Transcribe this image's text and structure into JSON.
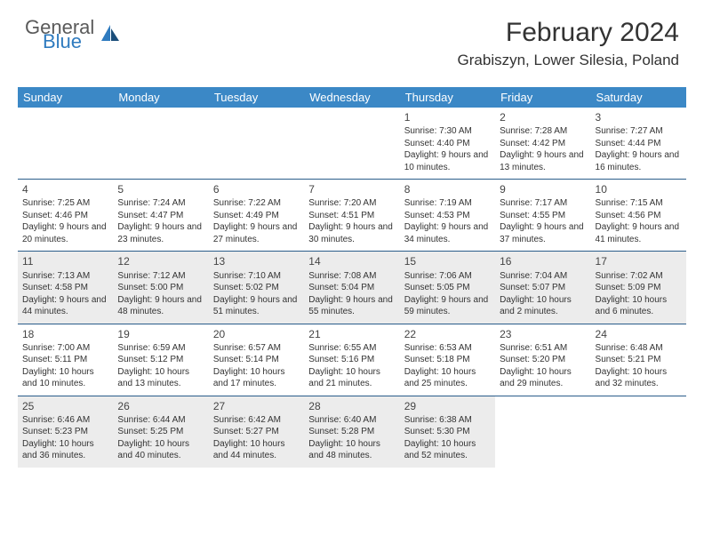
{
  "logo": {
    "word1": "General",
    "word2": "Blue"
  },
  "title": "February 2024",
  "location": "Grabiszyn, Lower Silesia, Poland",
  "colors": {
    "header_bg": "#3b88c6",
    "header_text": "#ffffff",
    "row_border": "#2a5d8a",
    "alt_bg": "#ececec",
    "logo_gray": "#5a5a5a",
    "logo_blue": "#2f7bbf"
  },
  "day_headers": [
    "Sunday",
    "Monday",
    "Tuesday",
    "Wednesday",
    "Thursday",
    "Friday",
    "Saturday"
  ],
  "weeks": [
    [
      null,
      null,
      null,
      null,
      {
        "n": "1",
        "sr": "7:30 AM",
        "ss": "4:40 PM",
        "dl": "9 hours and 10 minutes."
      },
      {
        "n": "2",
        "sr": "7:28 AM",
        "ss": "4:42 PM",
        "dl": "9 hours and 13 minutes."
      },
      {
        "n": "3",
        "sr": "7:27 AM",
        "ss": "4:44 PM",
        "dl": "9 hours and 16 minutes."
      }
    ],
    [
      {
        "n": "4",
        "sr": "7:25 AM",
        "ss": "4:46 PM",
        "dl": "9 hours and 20 minutes."
      },
      {
        "n": "5",
        "sr": "7:24 AM",
        "ss": "4:47 PM",
        "dl": "9 hours and 23 minutes."
      },
      {
        "n": "6",
        "sr": "7:22 AM",
        "ss": "4:49 PM",
        "dl": "9 hours and 27 minutes."
      },
      {
        "n": "7",
        "sr": "7:20 AM",
        "ss": "4:51 PM",
        "dl": "9 hours and 30 minutes."
      },
      {
        "n": "8",
        "sr": "7:19 AM",
        "ss": "4:53 PM",
        "dl": "9 hours and 34 minutes."
      },
      {
        "n": "9",
        "sr": "7:17 AM",
        "ss": "4:55 PM",
        "dl": "9 hours and 37 minutes."
      },
      {
        "n": "10",
        "sr": "7:15 AM",
        "ss": "4:56 PM",
        "dl": "9 hours and 41 minutes."
      }
    ],
    [
      {
        "n": "11",
        "sr": "7:13 AM",
        "ss": "4:58 PM",
        "dl": "9 hours and 44 minutes."
      },
      {
        "n": "12",
        "sr": "7:12 AM",
        "ss": "5:00 PM",
        "dl": "9 hours and 48 minutes."
      },
      {
        "n": "13",
        "sr": "7:10 AM",
        "ss": "5:02 PM",
        "dl": "9 hours and 51 minutes."
      },
      {
        "n": "14",
        "sr": "7:08 AM",
        "ss": "5:04 PM",
        "dl": "9 hours and 55 minutes."
      },
      {
        "n": "15",
        "sr": "7:06 AM",
        "ss": "5:05 PM",
        "dl": "9 hours and 59 minutes."
      },
      {
        "n": "16",
        "sr": "7:04 AM",
        "ss": "5:07 PM",
        "dl": "10 hours and 2 minutes."
      },
      {
        "n": "17",
        "sr": "7:02 AM",
        "ss": "5:09 PM",
        "dl": "10 hours and 6 minutes."
      }
    ],
    [
      {
        "n": "18",
        "sr": "7:00 AM",
        "ss": "5:11 PM",
        "dl": "10 hours and 10 minutes."
      },
      {
        "n": "19",
        "sr": "6:59 AM",
        "ss": "5:12 PM",
        "dl": "10 hours and 13 minutes."
      },
      {
        "n": "20",
        "sr": "6:57 AM",
        "ss": "5:14 PM",
        "dl": "10 hours and 17 minutes."
      },
      {
        "n": "21",
        "sr": "6:55 AM",
        "ss": "5:16 PM",
        "dl": "10 hours and 21 minutes."
      },
      {
        "n": "22",
        "sr": "6:53 AM",
        "ss": "5:18 PM",
        "dl": "10 hours and 25 minutes."
      },
      {
        "n": "23",
        "sr": "6:51 AM",
        "ss": "5:20 PM",
        "dl": "10 hours and 29 minutes."
      },
      {
        "n": "24",
        "sr": "6:48 AM",
        "ss": "5:21 PM",
        "dl": "10 hours and 32 minutes."
      }
    ],
    [
      {
        "n": "25",
        "sr": "6:46 AM",
        "ss": "5:23 PM",
        "dl": "10 hours and 36 minutes."
      },
      {
        "n": "26",
        "sr": "6:44 AM",
        "ss": "5:25 PM",
        "dl": "10 hours and 40 minutes."
      },
      {
        "n": "27",
        "sr": "6:42 AM",
        "ss": "5:27 PM",
        "dl": "10 hours and 44 minutes."
      },
      {
        "n": "28",
        "sr": "6:40 AM",
        "ss": "5:28 PM",
        "dl": "10 hours and 48 minutes."
      },
      {
        "n": "29",
        "sr": "6:38 AM",
        "ss": "5:30 PM",
        "dl": "10 hours and 52 minutes."
      },
      null,
      null
    ]
  ],
  "labels": {
    "sunrise": "Sunrise:",
    "sunset": "Sunset:",
    "daylight": "Daylight:"
  }
}
